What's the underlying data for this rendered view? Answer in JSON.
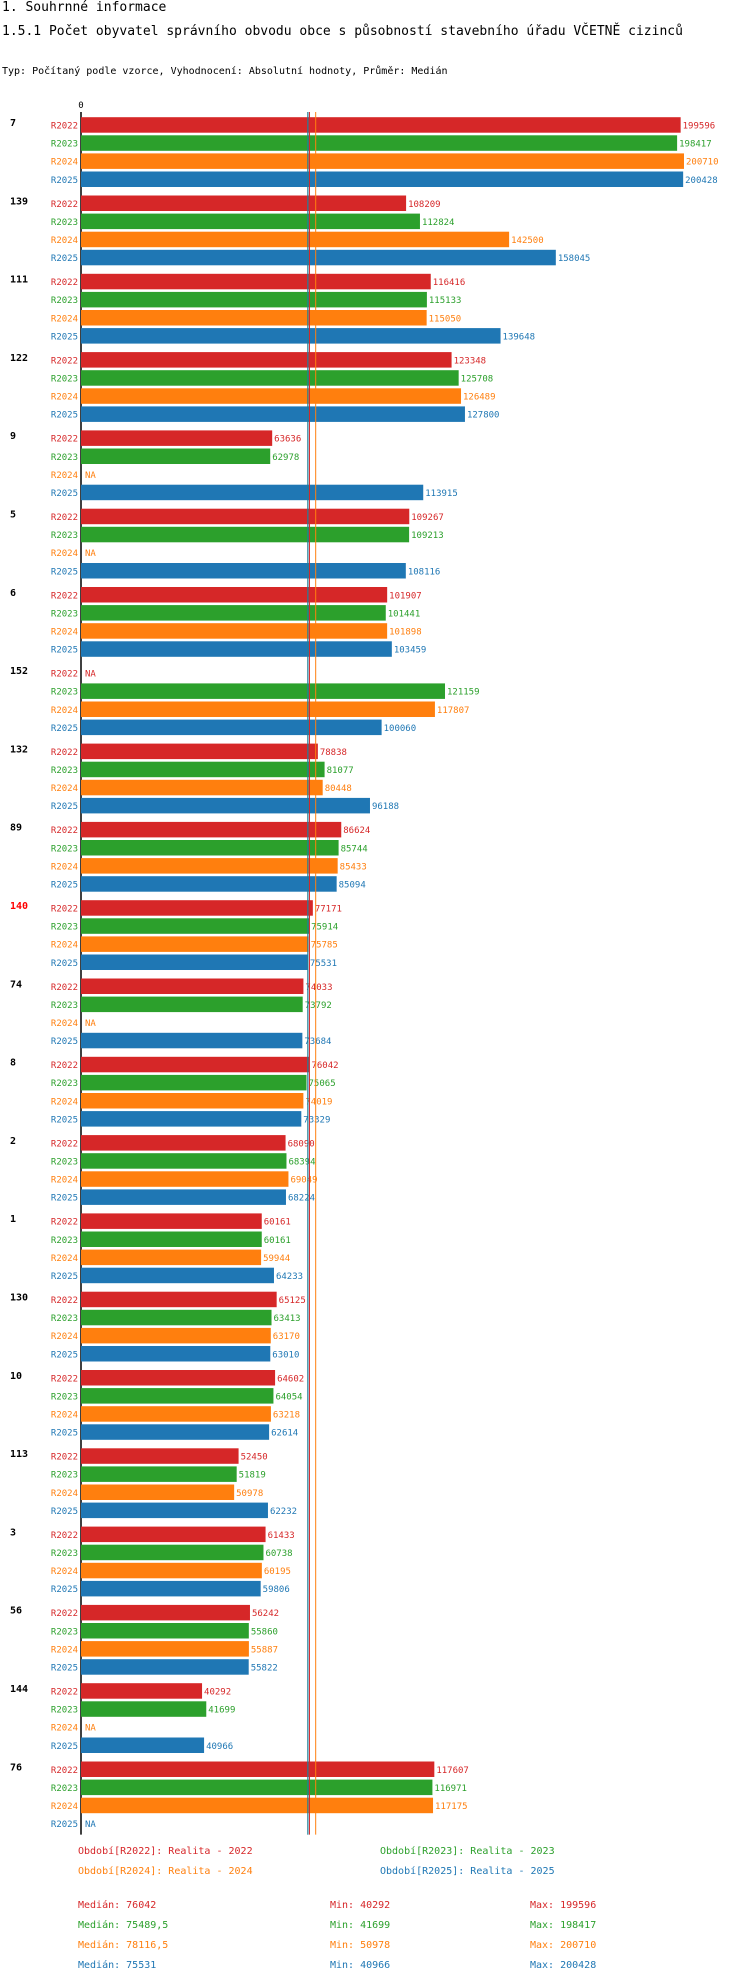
{
  "header": {
    "section": "1. Souhrnné informace",
    "title": "1.5.1 Počet obyvatel správního obvodu obce s působností stavebního úřadu VČETNĚ cizinců",
    "subtitle": "Typ: Počítaný podle vzorce, Vyhodnocení: Absolutní hodnoty, Průměr: Medián"
  },
  "colors": {
    "R2022": "#d62728",
    "R2023": "#2ca02c",
    "R2024": "#ff7f0e",
    "R2025": "#1f77b4",
    "highlight": "#ff0000"
  },
  "chart_data": {
    "type": "bar",
    "orientation": "horizontal",
    "axis_zero_label": "0",
    "xlim": [
      0,
      200710
    ],
    "series_names": [
      "R2022",
      "R2023",
      "R2024",
      "R2025"
    ],
    "na_label": "NA",
    "highlight_group": "140",
    "medians": [
      76042,
      75489.5,
      78116.5,
      75531
    ],
    "groups": [
      {
        "label": "7",
        "values": [
          199596,
          198417,
          200710,
          200428
        ]
      },
      {
        "label": "139",
        "values": [
          108209,
          112824,
          142500,
          158045
        ]
      },
      {
        "label": "111",
        "values": [
          116416,
          115133,
          115050,
          139648
        ]
      },
      {
        "label": "122",
        "values": [
          123348,
          125708,
          126489,
          127800
        ]
      },
      {
        "label": "9",
        "values": [
          63636,
          62978,
          null,
          113915
        ]
      },
      {
        "label": "5",
        "values": [
          109267,
          109213,
          null,
          108116
        ]
      },
      {
        "label": "6",
        "values": [
          101907,
          101441,
          101898,
          103459
        ]
      },
      {
        "label": "152",
        "values": [
          null,
          121159,
          117807,
          100060
        ]
      },
      {
        "label": "132",
        "values": [
          78838,
          81077,
          80448,
          96188
        ]
      },
      {
        "label": "89",
        "values": [
          86624,
          85744,
          85433,
          85094
        ]
      },
      {
        "label": "140",
        "values": [
          77171,
          75914,
          75785,
          75531
        ]
      },
      {
        "label": "74",
        "values": [
          74033,
          73792,
          null,
          73684
        ]
      },
      {
        "label": "8",
        "values": [
          76042,
          75065,
          74019,
          73329
        ]
      },
      {
        "label": "2",
        "values": [
          68090,
          68394,
          69049,
          68224
        ]
      },
      {
        "label": "1",
        "values": [
          60161,
          60161,
          59944,
          64233
        ]
      },
      {
        "label": "130",
        "values": [
          65125,
          63413,
          63170,
          63010
        ]
      },
      {
        "label": "10",
        "values": [
          64602,
          64054,
          63218,
          62614
        ]
      },
      {
        "label": "113",
        "values": [
          52450,
          51819,
          50978,
          62232
        ]
      },
      {
        "label": "3",
        "values": [
          61433,
          60738,
          60195,
          59806
        ]
      },
      {
        "label": "56",
        "values": [
          56242,
          55860,
          55887,
          55822
        ]
      },
      {
        "label": "144",
        "values": [
          40292,
          41699,
          null,
          40966
        ]
      },
      {
        "label": "76",
        "values": [
          117607,
          116971,
          117175,
          null
        ]
      }
    ]
  },
  "legend": {
    "items": [
      "Období[R2022]: Realita - 2022",
      "Období[R2023]: Realita - 2023",
      "Období[R2024]: Realita - 2024",
      "Období[R2025]: Realita - 2025"
    ]
  },
  "stats": [
    {
      "median": "Medián: 76042",
      "min": "Min: 40292",
      "max": "Max: 199596"
    },
    {
      "median": "Medián: 75489,5",
      "min": "Min: 41699",
      "max": "Max: 198417"
    },
    {
      "median": "Medián: 78116,5",
      "min": "Min: 50978",
      "max": "Max: 200710"
    },
    {
      "median": "Medián: 75531",
      "min": "Min: 40966",
      "max": "Max: 200428"
    }
  ]
}
